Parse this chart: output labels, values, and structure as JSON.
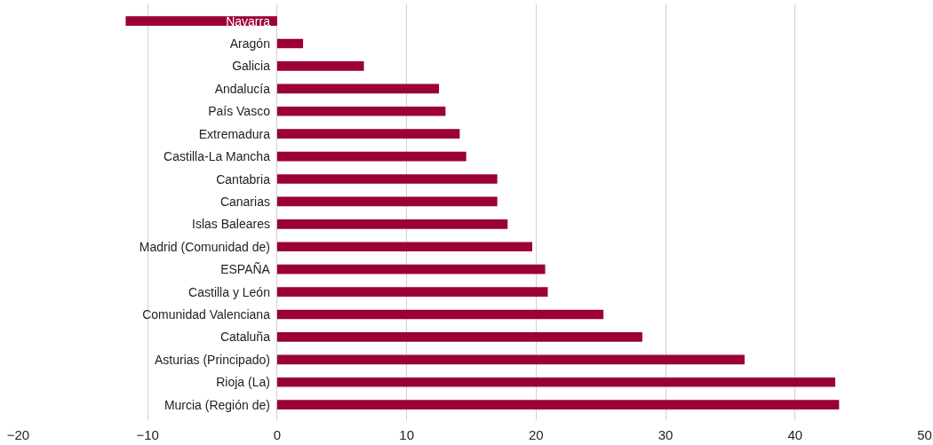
{
  "chart_data": {
    "type": "bar",
    "orientation": "horizontal",
    "categories": [
      "Navarra",
      "Aragón",
      "Galicia",
      "Andalucía",
      "País Vasco",
      "Extremadura",
      "Castilla-La Mancha",
      "Cantabria",
      "Canarias",
      "Islas Baleares",
      "Madrid (Comunidad de)",
      "ESPAÑA",
      "Castilla y León",
      "Comunidad Valenciana",
      "Cataluña",
      "Asturias (Principado)",
      "Rioja (La)",
      "Murcia (Región de)"
    ],
    "values": [
      -11.7,
      2.0,
      6.7,
      12.5,
      13.0,
      14.1,
      14.6,
      17.0,
      17.0,
      17.8,
      19.7,
      20.7,
      20.9,
      25.2,
      28.2,
      36.1,
      43.1,
      43.4
    ],
    "color": "#9b0036",
    "xlim": [
      -20,
      50
    ],
    "xticks": [
      {
        "value": -20,
        "label": "−20"
      },
      {
        "value": -10,
        "label": "−10"
      },
      0,
      10,
      20,
      30,
      40,
      50
    ],
    "grid": "x"
  }
}
